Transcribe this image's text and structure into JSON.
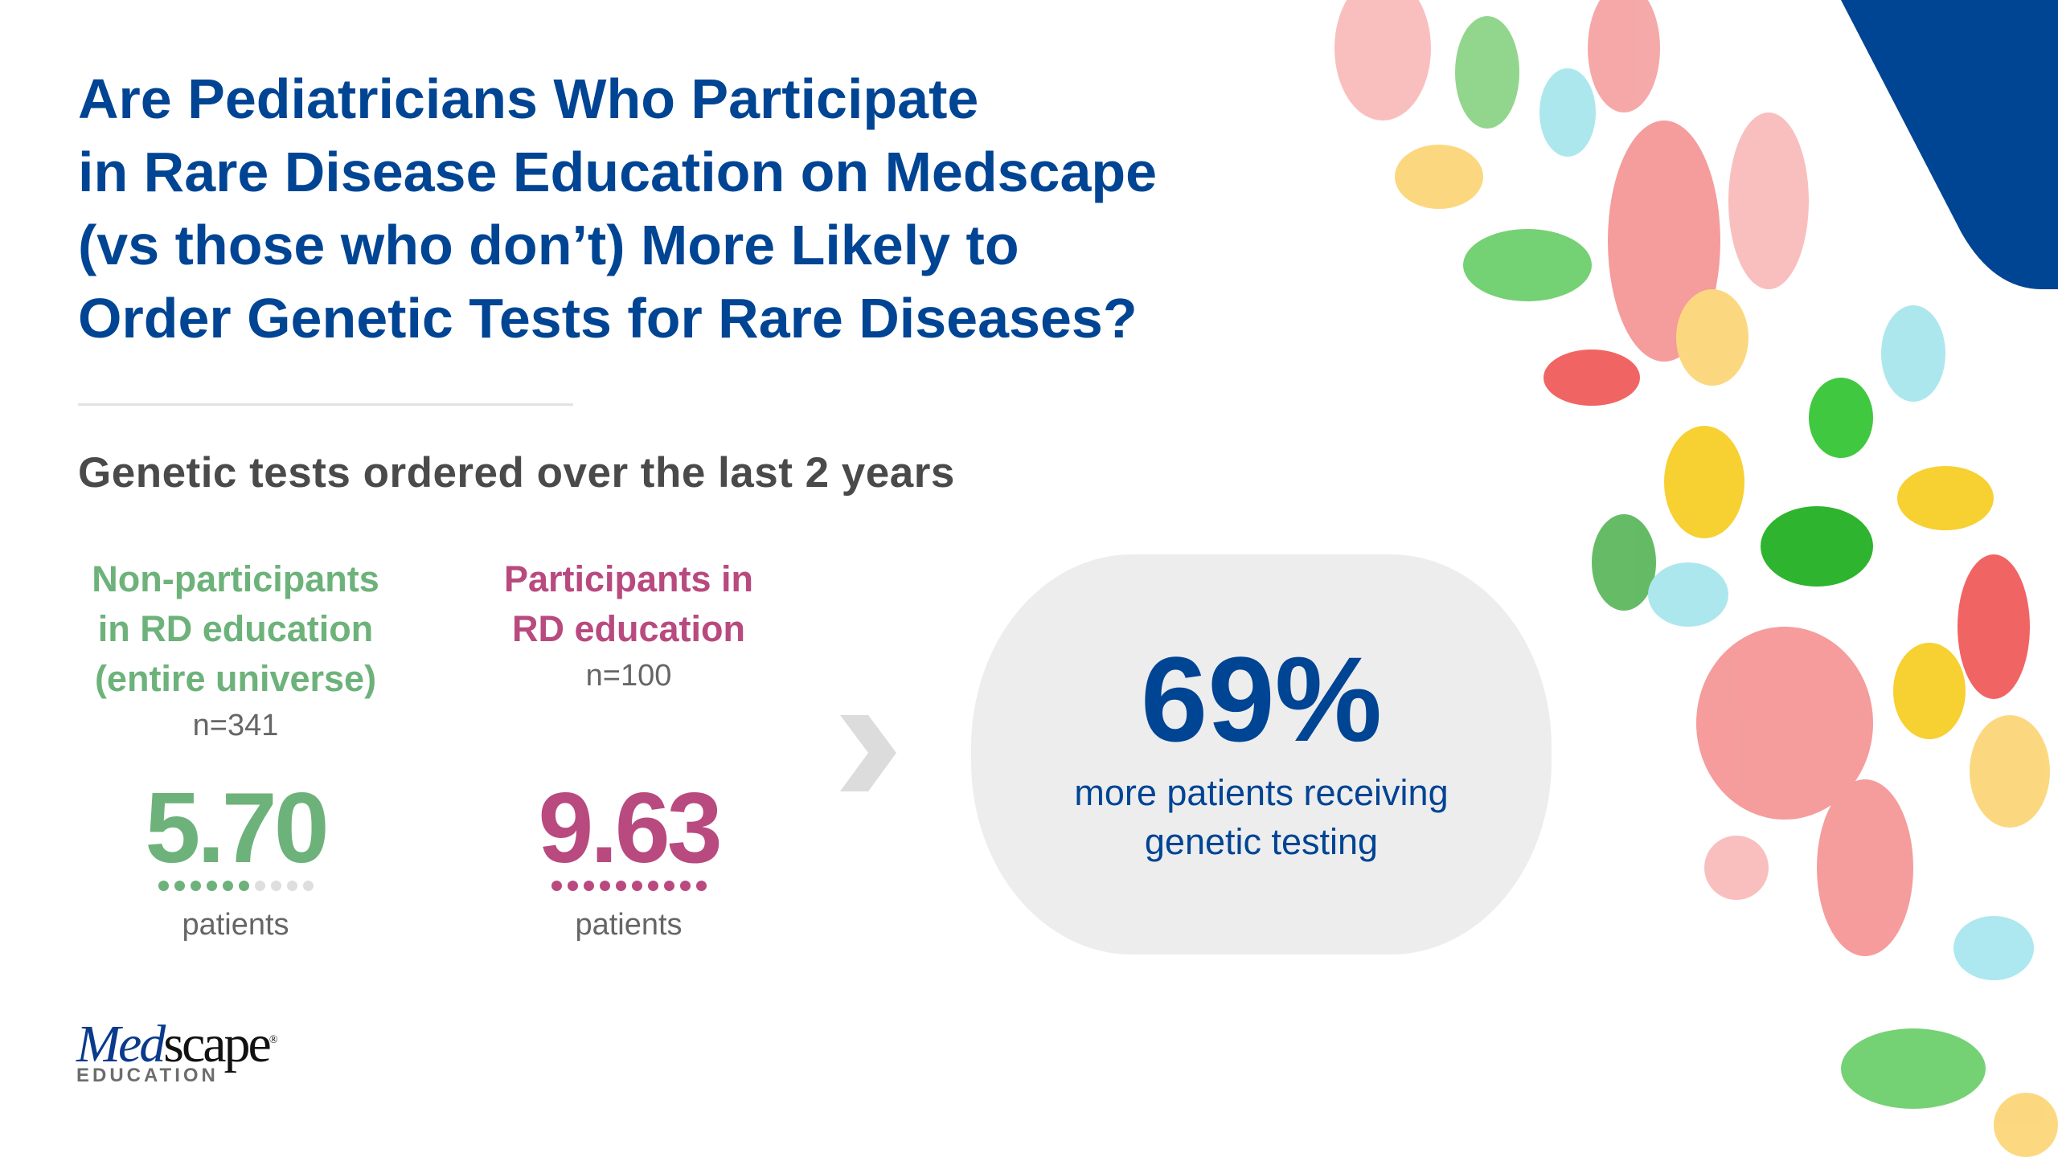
{
  "title_lines": [
    "Are Pediatricians Who Participate",
    "in Rare Disease Education on Medscape",
    "(vs those who don’t) More Likely to",
    "Order Genetic Tests for Rare Diseases?"
  ],
  "subtitle": "Genetic tests ordered over the last 2 years",
  "groups": [
    {
      "label_lines": [
        "Non-participants",
        "in RD education",
        "(entire universe)"
      ],
      "n": "n=341",
      "value": "5.70",
      "unit": "patients",
      "dots_filled": 6,
      "dots_total": 10,
      "color": "#6db27a"
    },
    {
      "label_lines": [
        "Participants in",
        "RD education"
      ],
      "n": "n=100",
      "value": "9.63",
      "unit": "patients",
      "dots_filled": 10,
      "dots_total": 10,
      "color": "#b84a7f"
    }
  ],
  "highlight": {
    "value": "69%",
    "desc_lines": [
      "more patients receiving",
      "genetic testing"
    ]
  },
  "logo": {
    "brand": "Medscape",
    "sub": "EDUCATION"
  },
  "colors": {
    "brand_blue": "#004494",
    "box_bg": "#ededed"
  }
}
